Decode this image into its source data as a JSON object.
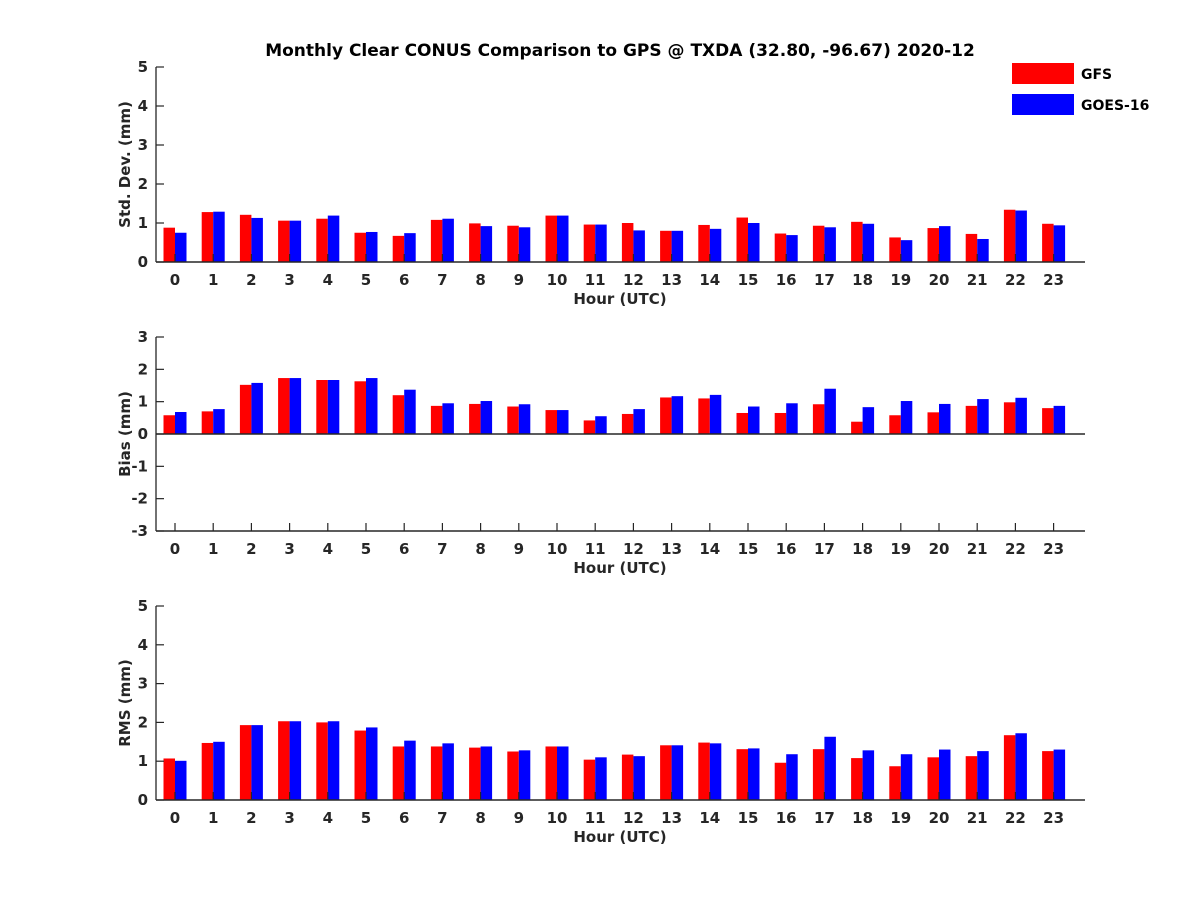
{
  "title": "Monthly Clear CONUS Comparison to GPS @ TXDA (32.80, -96.67) 2020-12",
  "legend": {
    "placement": "top-right",
    "entries": [
      {
        "label": "GFS",
        "color": "#ff0000"
      },
      {
        "label": "GOES-16",
        "color": "#0000ff"
      }
    ]
  },
  "chart_data": [
    {
      "type": "bar",
      "xlabel": "Hour (UTC)",
      "ylabel": "Std. Dev. (mm)",
      "ylim": [
        0,
        5
      ],
      "yticks": [
        0,
        1,
        2,
        3,
        4,
        5
      ],
      "categories": [
        "0",
        "1",
        "2",
        "3",
        "4",
        "5",
        "6",
        "7",
        "8",
        "9",
        "10",
        "11",
        "12",
        "13",
        "14",
        "15",
        "16",
        "17",
        "18",
        "19",
        "20",
        "21",
        "22",
        "23"
      ],
      "series": [
        {
          "name": "GFS",
          "color": "#ff0000",
          "values": [
            0.88,
            1.28,
            1.21,
            1.06,
            1.11,
            0.75,
            0.67,
            1.08,
            0.99,
            0.93,
            1.19,
            0.96,
            1.0,
            0.8,
            0.95,
            1.14,
            0.73,
            0.93,
            1.03,
            0.63,
            0.87,
            0.72,
            1.34,
            0.98
          ]
        },
        {
          "name": "GOES-16",
          "color": "#0000ff",
          "values": [
            0.75,
            1.29,
            1.13,
            1.06,
            1.19,
            0.77,
            0.74,
            1.11,
            0.92,
            0.89,
            1.19,
            0.96,
            0.81,
            0.8,
            0.85,
            1.0,
            0.69,
            0.89,
            0.98,
            0.56,
            0.92,
            0.59,
            1.32,
            0.94
          ]
        }
      ]
    },
    {
      "type": "bar",
      "xlabel": "Hour (UTC)",
      "ylabel": "Bias (mm)",
      "ylim": [
        -3,
        3
      ],
      "yticks": [
        -3,
        -2,
        -1,
        0,
        1,
        2,
        3
      ],
      "categories": [
        "0",
        "1",
        "2",
        "3",
        "4",
        "5",
        "6",
        "7",
        "8",
        "9",
        "10",
        "11",
        "12",
        "13",
        "14",
        "15",
        "16",
        "17",
        "18",
        "19",
        "20",
        "21",
        "22",
        "23"
      ],
      "series": [
        {
          "name": "GFS",
          "color": "#ff0000",
          "values": [
            0.58,
            0.7,
            1.52,
            1.73,
            1.67,
            1.63,
            1.2,
            0.87,
            0.93,
            0.85,
            0.74,
            0.42,
            0.62,
            1.13,
            1.1,
            0.65,
            0.65,
            0.92,
            0.38,
            0.58,
            0.67,
            0.87,
            0.98,
            0.8
          ]
        },
        {
          "name": "GOES-16",
          "color": "#0000ff",
          "values": [
            0.68,
            0.77,
            1.58,
            1.73,
            1.67,
            1.73,
            1.37,
            0.95,
            1.02,
            0.92,
            0.74,
            0.55,
            0.77,
            1.17,
            1.21,
            0.85,
            0.95,
            1.4,
            0.83,
            1.02,
            0.93,
            1.08,
            1.12,
            0.87
          ]
        }
      ]
    },
    {
      "type": "bar",
      "xlabel": "Hour (UTC)",
      "ylabel": "RMS (mm)",
      "ylim": [
        0,
        5
      ],
      "yticks": [
        0,
        1,
        2,
        3,
        4,
        5
      ],
      "categories": [
        "0",
        "1",
        "2",
        "3",
        "4",
        "5",
        "6",
        "7",
        "8",
        "9",
        "10",
        "11",
        "12",
        "13",
        "14",
        "15",
        "16",
        "17",
        "18",
        "19",
        "20",
        "21",
        "22",
        "23"
      ],
      "series": [
        {
          "name": "GFS",
          "color": "#ff0000",
          "values": [
            1.07,
            1.47,
            1.93,
            2.03,
            2.0,
            1.79,
            1.38,
            1.38,
            1.35,
            1.25,
            1.38,
            1.04,
            1.17,
            1.41,
            1.48,
            1.31,
            0.96,
            1.31,
            1.08,
            0.87,
            1.1,
            1.13,
            1.67,
            1.26
          ]
        },
        {
          "name": "GOES-16",
          "color": "#0000ff",
          "values": [
            1.01,
            1.5,
            1.93,
            2.03,
            2.03,
            1.87,
            1.53,
            1.46,
            1.38,
            1.28,
            1.38,
            1.1,
            1.13,
            1.41,
            1.46,
            1.33,
            1.18,
            1.63,
            1.28,
            1.18,
            1.3,
            1.26,
            1.72,
            1.3
          ]
        }
      ]
    }
  ]
}
